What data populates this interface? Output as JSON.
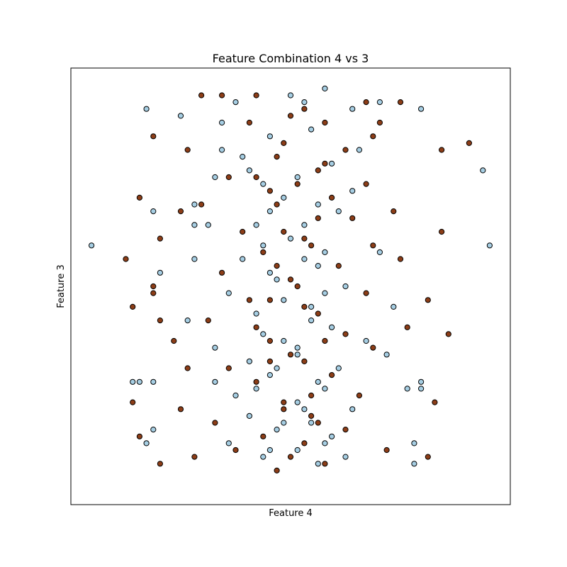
{
  "chart_data": {
    "type": "scatter",
    "title": "Feature Combination 4 vs 3",
    "xlabel": "Feature 4",
    "ylabel": "Feature 3",
    "xticks": [],
    "yticks": [],
    "grid": false,
    "xlim": [
      -3.2,
      3.2
    ],
    "ylim": [
      -3.2,
      3.2
    ],
    "series": [
      {
        "color": "#a6cee3",
        "points": [
          [
            -2.9,
            0.6
          ],
          [
            2.9,
            0.6
          ],
          [
            -2.1,
            2.6
          ],
          [
            -1.6,
            2.5
          ],
          [
            -2.0,
            1.1
          ],
          [
            2.8,
            1.7
          ],
          [
            1.3,
            2.7
          ],
          [
            1.9,
            2.6
          ],
          [
            -1.4,
            1.2
          ],
          [
            -1.4,
            0.9
          ],
          [
            -1.4,
            0.4
          ],
          [
            -1.1,
            -1.4
          ],
          [
            -2.3,
            -1.4
          ],
          [
            -2.0,
            -1.4
          ],
          [
            -1.9,
            0.2
          ],
          [
            1.9,
            -1.4
          ],
          [
            -2.2,
            -1.4
          ],
          [
            1.7,
            -1.5
          ],
          [
            1.9,
            -1.5
          ],
          [
            -2.0,
            -2.1
          ],
          [
            -2.1,
            -2.3
          ],
          [
            1.8,
            -2.3
          ],
          [
            1.8,
            -2.6
          ],
          [
            0.5,
            2.9
          ],
          [
            0.2,
            2.7
          ],
          [
            -0.8,
            2.7
          ],
          [
            0.9,
            2.6
          ],
          [
            1.0,
            2.0
          ],
          [
            -1.0,
            2.0
          ],
          [
            -0.7,
            1.9
          ],
          [
            0.9,
            1.4
          ],
          [
            -1.1,
            1.6
          ],
          [
            -0.4,
            1.5
          ],
          [
            0.7,
            1.1
          ],
          [
            -0.3,
            1.1
          ],
          [
            0.2,
            0.9
          ],
          [
            -0.4,
            0.6
          ],
          [
            0.5,
            0.5
          ],
          [
            -0.7,
            0.4
          ],
          [
            0.4,
            0.3
          ],
          [
            -0.2,
            0.1
          ],
          [
            0.8,
            0.0
          ],
          [
            -0.9,
            -0.1
          ],
          [
            0.3,
            -0.3
          ],
          [
            -0.5,
            -0.4
          ],
          [
            0.6,
            -0.6
          ],
          [
            -0.1,
            -0.8
          ],
          [
            0.1,
            -0.9
          ],
          [
            -0.6,
            -1.1
          ],
          [
            0.7,
            -1.2
          ],
          [
            -0.3,
            -1.3
          ],
          [
            0.5,
            -1.5
          ],
          [
            -0.8,
            -1.6
          ],
          [
            0.1,
            -1.7
          ],
          [
            0.9,
            -1.8
          ],
          [
            -0.6,
            -1.9
          ],
          [
            0.3,
            -2.0
          ],
          [
            -0.2,
            -2.1
          ],
          [
            0.6,
            -2.2
          ],
          [
            -0.9,
            -2.3
          ],
          [
            0.1,
            -2.4
          ],
          [
            -0.4,
            -2.5
          ],
          [
            0.4,
            -2.6
          ],
          [
            1.5,
            -0.3
          ],
          [
            -1.5,
            -0.5
          ],
          [
            1.3,
            0.5
          ],
          [
            -1.2,
            0.9
          ],
          [
            1.1,
            -0.8
          ],
          [
            -1.1,
            -0.9
          ],
          [
            1.4,
            -1.0
          ],
          [
            -1.0,
            2.4
          ],
          [
            0.0,
            2.8
          ],
          [
            0.3,
            2.3
          ],
          [
            -0.3,
            2.2
          ],
          [
            0.6,
            1.8
          ],
          [
            -0.6,
            1.7
          ],
          [
            0.1,
            1.6
          ],
          [
            -0.1,
            1.3
          ],
          [
            0.4,
            1.2
          ],
          [
            -0.5,
            0.9
          ],
          [
            0.0,
            0.7
          ],
          [
            0.2,
            0.4
          ],
          [
            -0.3,
            0.2
          ],
          [
            0.5,
            -0.1
          ],
          [
            -0.1,
            -0.2
          ],
          [
            0.3,
            -0.5
          ],
          [
            -0.4,
            -0.7
          ],
          [
            0.1,
            -1.0
          ],
          [
            -0.2,
            -1.2
          ],
          [
            0.4,
            -1.4
          ],
          [
            -0.5,
            -1.5
          ],
          [
            0.2,
            -1.8
          ],
          [
            -0.1,
            -2.0
          ],
          [
            0.5,
            -2.3
          ],
          [
            -0.3,
            -2.4
          ],
          [
            0.8,
            -2.5
          ]
        ]
      },
      {
        "color": "#8c3d17",
        "points": [
          [
            2.6,
            2.1
          ],
          [
            2.2,
            2.0
          ],
          [
            -2.0,
            2.2
          ],
          [
            -2.2,
            1.3
          ],
          [
            -1.9,
            0.7
          ],
          [
            -2.4,
            0.4
          ],
          [
            2.2,
            0.8
          ],
          [
            -2.0,
            0.0
          ],
          [
            -2.0,
            -0.1
          ],
          [
            -2.3,
            -0.3
          ],
          [
            2.0,
            -0.2
          ],
          [
            -1.9,
            -0.5
          ],
          [
            2.3,
            -0.7
          ],
          [
            -1.5,
            -1.2
          ],
          [
            -1.6,
            -1.8
          ],
          [
            2.1,
            -1.7
          ],
          [
            -2.3,
            -1.7
          ],
          [
            -2.2,
            -2.2
          ],
          [
            2.0,
            -2.5
          ],
          [
            -1.9,
            -2.6
          ],
          [
            -1.3,
            2.8
          ],
          [
            -1.0,
            2.8
          ],
          [
            1.1,
            2.7
          ],
          [
            1.6,
            2.7
          ],
          [
            -0.5,
            2.8
          ],
          [
            0.2,
            2.6
          ],
          [
            0.5,
            2.4
          ],
          [
            -0.6,
            2.4
          ],
          [
            1.2,
            2.2
          ],
          [
            -1.5,
            2.0
          ],
          [
            0.8,
            2.0
          ],
          [
            -0.2,
            1.9
          ],
          [
            0.4,
            1.7
          ],
          [
            -0.9,
            1.6
          ],
          [
            1.1,
            1.5
          ],
          [
            -0.3,
            1.4
          ],
          [
            0.6,
            1.3
          ],
          [
            -1.3,
            1.2
          ],
          [
            0.9,
            1.0
          ],
          [
            -0.7,
            0.8
          ],
          [
            0.2,
            0.7
          ],
          [
            1.2,
            0.6
          ],
          [
            -0.4,
            0.5
          ],
          [
            0.7,
            0.3
          ],
          [
            -1.0,
            0.2
          ],
          [
            0.0,
            0.1
          ],
          [
            1.1,
            -0.1
          ],
          [
            -0.6,
            -0.2
          ],
          [
            0.4,
            -0.4
          ],
          [
            -1.2,
            -0.5
          ],
          [
            0.8,
            -0.7
          ],
          [
            -0.3,
            -0.8
          ],
          [
            1.2,
            -0.9
          ],
          [
            0.2,
            -1.1
          ],
          [
            -0.9,
            -1.2
          ],
          [
            0.6,
            -1.3
          ],
          [
            -0.5,
            -1.4
          ],
          [
            1.0,
            -1.6
          ],
          [
            -0.1,
            -1.7
          ],
          [
            0.3,
            -1.9
          ],
          [
            -1.1,
            -2.0
          ],
          [
            0.8,
            -2.1
          ],
          [
            -0.4,
            -2.2
          ],
          [
            0.2,
            -2.3
          ],
          [
            -0.8,
            -2.4
          ],
          [
            0.5,
            -2.6
          ],
          [
            -0.2,
            -2.7
          ],
          [
            1.4,
            -2.4
          ],
          [
            -1.4,
            -2.5
          ],
          [
            1.5,
            1.1
          ],
          [
            -1.6,
            1.1
          ],
          [
            1.6,
            0.4
          ],
          [
            -1.7,
            -0.8
          ],
          [
            1.7,
            -0.6
          ],
          [
            1.3,
            2.4
          ],
          [
            0.0,
            2.5
          ],
          [
            -0.1,
            2.1
          ],
          [
            0.5,
            1.8
          ],
          [
            -0.5,
            1.6
          ],
          [
            0.1,
            1.5
          ],
          [
            -0.2,
            1.2
          ],
          [
            0.4,
            1.0
          ],
          [
            -0.1,
            0.8
          ],
          [
            0.3,
            0.6
          ],
          [
            -0.2,
            0.3
          ],
          [
            0.1,
            0.0
          ],
          [
            -0.3,
            -0.2
          ],
          [
            0.2,
            -0.3
          ],
          [
            -0.5,
            -0.6
          ],
          [
            0.5,
            -0.8
          ],
          [
            0.0,
            -1.0
          ],
          [
            -0.3,
            -1.1
          ],
          [
            0.3,
            -1.6
          ],
          [
            -0.1,
            -1.8
          ],
          [
            0.4,
            -2.0
          ],
          [
            0.0,
            -2.5
          ]
        ]
      }
    ]
  }
}
